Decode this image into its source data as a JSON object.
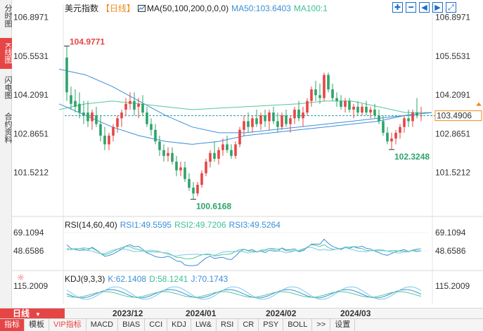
{
  "left_tabs": [
    {
      "label": "分时图",
      "active": false
    },
    {
      "label": "K线图",
      "active": true
    },
    {
      "label": "闪电图",
      "active": false
    },
    {
      "label": "合约资料",
      "active": false
    }
  ],
  "header": {
    "instrument": "美元指数",
    "period_tag": "【日线】",
    "ma_label": "MA(50,100,200,0,0,0)",
    "ma50": "MA50:103.6403",
    "ma100": "MA100:1"
  },
  "toolbar_icons": [
    "zoom-in-icon",
    "zoom-out-icon",
    "move-left-icon",
    "move-right-icon",
    "fullscreen-icon"
  ],
  "price_axis": {
    "ticks": [
      "106.8971",
      "105.5531",
      "104.2091",
      "102.8651",
      "101.5212"
    ],
    "current": "103.4906"
  },
  "annotations": {
    "high": "104.9771",
    "low": "100.6168",
    "local_low": "102.3248"
  },
  "rsi": {
    "label": "RSI(14,60,40)",
    "rsi1": "RSI1:49.5595",
    "rsi2": "RSI2:49.7206",
    "rsi3": "RSI3:49.5264",
    "ticks": [
      "69.1094",
      "48.6586"
    ]
  },
  "kdj": {
    "label": "KDJ(9,3,3)",
    "k": "K:62.1408",
    "d": "D:58.1241",
    "j": "J:70.1743",
    "ticks": [
      "115.2009"
    ]
  },
  "period_button": "日线",
  "x_dates": [
    "2023/12",
    "2024/01",
    "2024/02",
    "2024/03"
  ],
  "bottom_tabs": [
    {
      "label": "指标",
      "active": true
    },
    {
      "label": "模板"
    },
    {
      "label": "VIP指标",
      "vip": true
    },
    {
      "label": "MACD"
    },
    {
      "label": "BIAS"
    },
    {
      "label": "CCI"
    },
    {
      "label": "KDJ"
    },
    {
      "label": "LW&"
    },
    {
      "label": "RSI"
    },
    {
      "label": "CR"
    },
    {
      "label": "PSY"
    },
    {
      "label": "BOLL"
    },
    {
      "label": ">>"
    },
    {
      "label": "设置"
    }
  ],
  "colors": {
    "up": "#e64545",
    "down": "#2ea36b",
    "ma50": "#3b8fd9",
    "ma100": "#55c69a",
    "ma200": "#3b8fd9",
    "current_line": "#1aa0a0",
    "accent": "#e64545"
  },
  "chart_data": {
    "type": "candlestick",
    "candles": [
      [
        105.5,
        105.9,
        104.0,
        104.3
      ],
      [
        104.2,
        104.5,
        103.7,
        103.9
      ],
      [
        104.0,
        104.4,
        103.6,
        103.8
      ],
      [
        103.9,
        104.3,
        103.4,
        103.6
      ],
      [
        103.6,
        104.0,
        103.2,
        103.5
      ],
      [
        103.6,
        104.0,
        103.1,
        103.3
      ],
      [
        103.3,
        103.7,
        103.0,
        103.6
      ],
      [
        103.5,
        103.8,
        103.1,
        103.2
      ],
      [
        103.2,
        103.5,
        102.6,
        102.8
      ],
      [
        102.8,
        103.1,
        102.3,
        102.5
      ],
      [
        102.5,
        102.9,
        102.3,
        102.8
      ],
      [
        102.8,
        103.2,
        102.6,
        103.1
      ],
      [
        103.1,
        103.5,
        102.9,
        103.4
      ],
      [
        103.4,
        103.7,
        103.1,
        103.6
      ],
      [
        103.7,
        104.1,
        103.5,
        103.9
      ],
      [
        103.9,
        104.3,
        103.7,
        104.0
      ],
      [
        104.0,
        104.3,
        103.5,
        103.7
      ],
      [
        103.8,
        104.1,
        103.4,
        103.9
      ],
      [
        103.9,
        104.2,
        103.5,
        103.6
      ],
      [
        103.6,
        103.8,
        103.1,
        103.2
      ],
      [
        103.2,
        103.4,
        102.8,
        103.0
      ],
      [
        103.0,
        103.2,
        102.5,
        102.6
      ],
      [
        102.6,
        102.8,
        102.1,
        102.3
      ],
      [
        102.3,
        102.5,
        101.9,
        102.1
      ],
      [
        102.1,
        102.4,
        101.9,
        102.2
      ],
      [
        102.2,
        102.4,
        101.8,
        101.9
      ],
      [
        101.9,
        102.1,
        101.4,
        101.6
      ],
      [
        101.6,
        101.9,
        101.4,
        101.7
      ],
      [
        101.7,
        101.9,
        101.2,
        101.3
      ],
      [
        101.3,
        101.5,
        100.9,
        101.0
      ],
      [
        101.0,
        101.2,
        100.6,
        100.8
      ],
      [
        100.8,
        101.2,
        100.7,
        101.1
      ],
      [
        101.1,
        101.6,
        101.0,
        101.5
      ],
      [
        101.5,
        102.0,
        101.4,
        101.9
      ],
      [
        101.9,
        102.3,
        101.7,
        102.2
      ],
      [
        102.2,
        102.6,
        101.9,
        102.0
      ],
      [
        102.0,
        102.4,
        101.8,
        102.3
      ],
      [
        102.3,
        102.7,
        102.1,
        102.5
      ],
      [
        102.5,
        102.8,
        102.2,
        102.3
      ],
      [
        102.3,
        102.5,
        102.0,
        102.1
      ],
      [
        102.1,
        102.6,
        102.0,
        102.5
      ],
      [
        102.5,
        103.1,
        102.4,
        103.0
      ],
      [
        103.0,
        103.5,
        102.8,
        103.3
      ],
      [
        103.3,
        103.6,
        102.9,
        103.1
      ],
      [
        103.1,
        103.5,
        102.9,
        103.4
      ],
      [
        103.4,
        103.7,
        103.1,
        103.2
      ],
      [
        103.2,
        103.6,
        103.0,
        103.5
      ],
      [
        103.5,
        103.7,
        103.1,
        103.3
      ],
      [
        103.3,
        103.7,
        103.0,
        103.6
      ],
      [
        103.6,
        103.8,
        103.2,
        103.3
      ],
      [
        103.3,
        103.6,
        102.9,
        103.1
      ],
      [
        103.1,
        103.6,
        103.0,
        103.5
      ],
      [
        103.5,
        103.7,
        103.1,
        103.2
      ],
      [
        103.2,
        103.5,
        102.9,
        103.4
      ],
      [
        103.4,
        103.8,
        103.2,
        103.7
      ],
      [
        103.7,
        104.0,
        103.3,
        103.4
      ],
      [
        103.4,
        103.8,
        103.1,
        103.6
      ],
      [
        103.6,
        104.1,
        103.5,
        104.0
      ],
      [
        104.0,
        104.5,
        103.8,
        104.4
      ],
      [
        104.4,
        104.7,
        104.0,
        104.2
      ],
      [
        104.2,
        104.6,
        103.9,
        104.1
      ],
      [
        104.1,
        104.98,
        104.0,
        104.9
      ],
      [
        104.9,
        104.98,
        104.3,
        104.4
      ],
      [
        104.4,
        104.6,
        104.0,
        104.1
      ],
      [
        104.1,
        104.3,
        103.8,
        104.0
      ],
      [
        104.0,
        104.2,
        103.7,
        103.8
      ],
      [
        103.8,
        104.1,
        103.6,
        104.0
      ],
      [
        104.0,
        104.1,
        103.6,
        103.7
      ],
      [
        103.7,
        103.9,
        103.4,
        103.8
      ],
      [
        103.8,
        104.0,
        103.5,
        103.6
      ],
      [
        103.6,
        103.9,
        103.5,
        103.8
      ],
      [
        103.8,
        104.0,
        103.5,
        103.6
      ],
      [
        103.6,
        103.8,
        103.4,
        103.7
      ],
      [
        103.7,
        103.9,
        103.4,
        103.5
      ],
      [
        103.5,
        103.7,
        103.2,
        103.3
      ],
      [
        103.3,
        103.5,
        102.8,
        102.9
      ],
      [
        102.9,
        103.1,
        102.5,
        102.6
      ],
      [
        102.6,
        102.9,
        102.32,
        102.7
      ],
      [
        102.7,
        103.0,
        102.5,
        102.9
      ],
      [
        102.9,
        103.2,
        102.7,
        103.1
      ],
      [
        103.1,
        103.5,
        102.9,
        103.4
      ],
      [
        103.4,
        103.7,
        103.1,
        103.3
      ],
      [
        103.3,
        103.7,
        103.1,
        103.6
      ],
      [
        103.6,
        104.1,
        103.4,
        103.5
      ],
      [
        103.5,
        103.8,
        103.3,
        103.5
      ]
    ],
    "ma50": [
      103.9,
      103.5,
      103.1,
      102.8,
      102.6,
      102.5,
      102.6,
      102.8,
      102.9,
      103.0,
      103.1,
      103.2,
      103.3,
      103.5,
      103.6
    ],
    "ma100": [
      103.7,
      103.9,
      104.0,
      103.9,
      103.8,
      103.7,
      103.75,
      103.8,
      103.85,
      103.9,
      104.0,
      104.0,
      103.8,
      103.6,
      103.6
    ],
    "ma200": [
      105.1,
      104.9,
      104.5,
      104.0,
      103.5,
      103.1,
      102.9,
      102.9,
      103.0,
      103.1,
      103.2,
      103.3,
      103.4,
      103.5,
      103.6
    ],
    "ylim": [
      100.2,
      107.2
    ]
  }
}
